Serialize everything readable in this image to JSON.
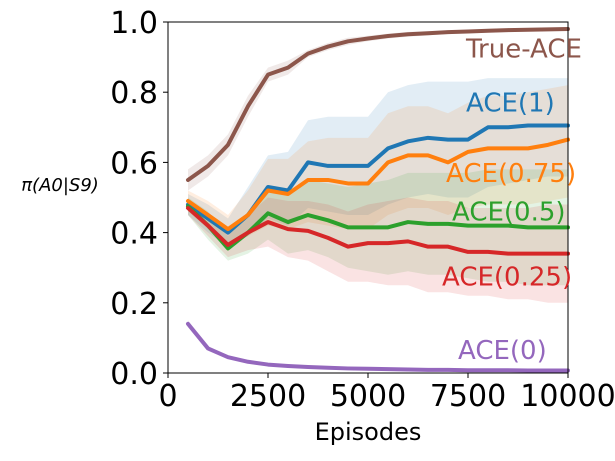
{
  "chart_data": {
    "type": "line",
    "title": "",
    "xlabel": "Episodes",
    "ylabel": "π(A0|S9)",
    "xlim": [
      0,
      10000
    ],
    "ylim": [
      0.0,
      1.0
    ],
    "xticks": [
      0,
      2500,
      5000,
      7500,
      10000
    ],
    "xtick_labels": [
      "0",
      "2500",
      "5000",
      "7500",
      "10000"
    ],
    "yticks": [
      0.0,
      0.2,
      0.4,
      0.6,
      0.8,
      1.0
    ],
    "ytick_labels": [
      "0.0",
      "0.2",
      "0.4",
      "0.6",
      "0.8",
      "1.0"
    ],
    "grid": false,
    "x": [
      500,
      1000,
      1500,
      2000,
      2500,
      3000,
      3500,
      4000,
      4500,
      5000,
      5500,
      6000,
      6500,
      7000,
      7500,
      8000,
      8500,
      9000,
      9500,
      10000
    ],
    "series": [
      {
        "name": "True-ACE",
        "color": "#8c564b",
        "values": [
          0.55,
          0.59,
          0.65,
          0.76,
          0.85,
          0.87,
          0.91,
          0.93,
          0.945,
          0.953,
          0.96,
          0.965,
          0.968,
          0.971,
          0.973,
          0.975,
          0.977,
          0.978,
          0.979,
          0.98
        ],
        "band_low": [
          0.52,
          0.56,
          0.62,
          0.73,
          0.83,
          0.85,
          0.9,
          0.92,
          0.935,
          0.945,
          0.953,
          0.958,
          0.962,
          0.966,
          0.968,
          0.97,
          0.972,
          0.973,
          0.974,
          0.975
        ],
        "band_high": [
          0.58,
          0.62,
          0.68,
          0.79,
          0.87,
          0.89,
          0.92,
          0.94,
          0.955,
          0.961,
          0.967,
          0.972,
          0.974,
          0.976,
          0.978,
          0.98,
          0.982,
          0.983,
          0.984,
          0.985
        ]
      },
      {
        "name": "ACE(1)",
        "color": "#1f77b4",
        "values": [
          0.48,
          0.44,
          0.4,
          0.45,
          0.53,
          0.52,
          0.6,
          0.59,
          0.59,
          0.59,
          0.64,
          0.66,
          0.67,
          0.665,
          0.665,
          0.7,
          0.7,
          0.705,
          0.705,
          0.705
        ],
        "band_low": [
          0.45,
          0.4,
          0.36,
          0.39,
          0.44,
          0.42,
          0.47,
          0.46,
          0.45,
          0.45,
          0.48,
          0.5,
          0.51,
          0.5,
          0.5,
          0.53,
          0.54,
          0.55,
          0.56,
          0.56
        ],
        "band_high": [
          0.51,
          0.48,
          0.44,
          0.53,
          0.62,
          0.63,
          0.72,
          0.73,
          0.73,
          0.73,
          0.8,
          0.82,
          0.83,
          0.83,
          0.83,
          0.84,
          0.84,
          0.84,
          0.84,
          0.84
        ]
      },
      {
        "name": "ACE(0.75)",
        "color": "#ff7f0e",
        "values": [
          0.49,
          0.45,
          0.41,
          0.45,
          0.52,
          0.51,
          0.55,
          0.55,
          0.54,
          0.54,
          0.6,
          0.62,
          0.62,
          0.6,
          0.63,
          0.64,
          0.64,
          0.64,
          0.65,
          0.665
        ],
        "band_low": [
          0.46,
          0.41,
          0.37,
          0.39,
          0.42,
          0.41,
          0.43,
          0.42,
          0.41,
          0.41,
          0.45,
          0.47,
          0.47,
          0.45,
          0.47,
          0.48,
          0.48,
          0.48,
          0.49,
          0.5
        ],
        "band_high": [
          0.52,
          0.49,
          0.45,
          0.52,
          0.61,
          0.61,
          0.66,
          0.67,
          0.67,
          0.67,
          0.74,
          0.76,
          0.76,
          0.74,
          0.77,
          0.79,
          0.79,
          0.8,
          0.81,
          0.82
        ]
      },
      {
        "name": "ACE(0.5)",
        "color": "#2ca02c",
        "values": [
          0.475,
          0.42,
          0.355,
          0.4,
          0.455,
          0.43,
          0.45,
          0.435,
          0.415,
          0.415,
          0.415,
          0.43,
          0.425,
          0.425,
          0.42,
          0.42,
          0.42,
          0.415,
          0.415,
          0.415
        ],
        "band_low": [
          0.45,
          0.38,
          0.32,
          0.34,
          0.38,
          0.34,
          0.35,
          0.33,
          0.3,
          0.29,
          0.28,
          0.29,
          0.28,
          0.28,
          0.27,
          0.26,
          0.26,
          0.25,
          0.25,
          0.25
        ],
        "band_high": [
          0.5,
          0.46,
          0.39,
          0.46,
          0.53,
          0.52,
          0.55,
          0.54,
          0.53,
          0.54,
          0.55,
          0.57,
          0.57,
          0.57,
          0.57,
          0.58,
          0.58,
          0.58,
          0.58,
          0.58
        ]
      },
      {
        "name": "ACE(0.25)",
        "color": "#d62728",
        "values": [
          0.47,
          0.42,
          0.365,
          0.4,
          0.43,
          0.41,
          0.405,
          0.385,
          0.36,
          0.37,
          0.37,
          0.375,
          0.36,
          0.36,
          0.345,
          0.345,
          0.34,
          0.34,
          0.34,
          0.34
        ],
        "band_low": [
          0.45,
          0.39,
          0.33,
          0.35,
          0.36,
          0.33,
          0.32,
          0.29,
          0.26,
          0.26,
          0.25,
          0.25,
          0.23,
          0.23,
          0.22,
          0.22,
          0.21,
          0.21,
          0.2,
          0.2
        ],
        "band_high": [
          0.49,
          0.45,
          0.4,
          0.45,
          0.5,
          0.49,
          0.49,
          0.48,
          0.46,
          0.48,
          0.49,
          0.5,
          0.49,
          0.49,
          0.47,
          0.47,
          0.47,
          0.47,
          0.48,
          0.48
        ]
      },
      {
        "name": "ACE(0)",
        "color": "#9467bd",
        "values": [
          0.14,
          0.07,
          0.045,
          0.032,
          0.024,
          0.02,
          0.017,
          0.015,
          0.013,
          0.012,
          0.011,
          0.01,
          0.009,
          0.009,
          0.008,
          0.008,
          0.008,
          0.007,
          0.007,
          0.007
        ],
        "band_low": [
          0.13,
          0.063,
          0.04,
          0.028,
          0.021,
          0.017,
          0.014,
          0.012,
          0.011,
          0.01,
          0.009,
          0.008,
          0.007,
          0.007,
          0.006,
          0.006,
          0.006,
          0.005,
          0.005,
          0.005
        ],
        "band_high": [
          0.15,
          0.077,
          0.05,
          0.036,
          0.027,
          0.023,
          0.02,
          0.018,
          0.015,
          0.014,
          0.013,
          0.012,
          0.011,
          0.011,
          0.01,
          0.01,
          0.01,
          0.009,
          0.009,
          0.009
        ]
      }
    ],
    "annotations": [
      {
        "text": "True-ACE",
        "series": "True-ACE",
        "at_x": 7450,
        "at_y": 0.925
      },
      {
        "text": "ACE(1)",
        "series": "ACE(1)",
        "at_x": 7450,
        "at_y": 0.77
      },
      {
        "text": "ACE(0.75)",
        "series": "ACE(0.75)",
        "at_x": 6950,
        "at_y": 0.57
      },
      {
        "text": "ACE(0.5)",
        "series": "ACE(0.5)",
        "at_x": 7100,
        "at_y": 0.46
      },
      {
        "text": "ACE(0.25)",
        "series": "ACE(0.25)",
        "at_x": 6850,
        "at_y": 0.275
      },
      {
        "text": "ACE(0)",
        "series": "ACE(0)",
        "at_x": 7250,
        "at_y": 0.065
      }
    ]
  }
}
